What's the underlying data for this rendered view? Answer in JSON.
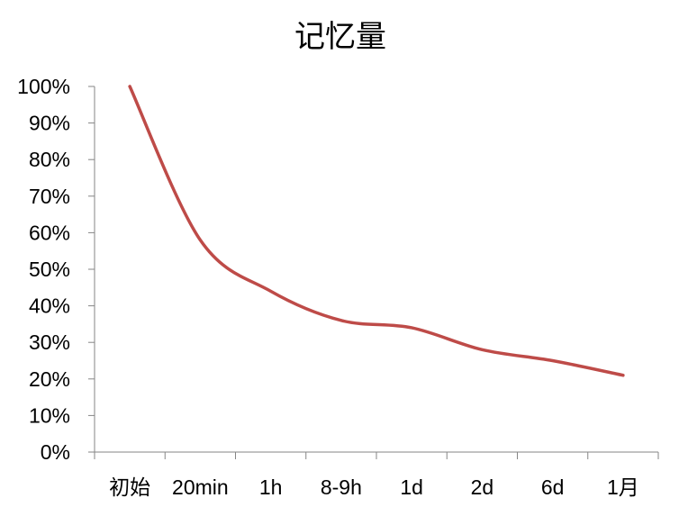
{
  "chart_data": {
    "type": "line",
    "title": "记忆量",
    "xlabel": "",
    "ylabel": "",
    "categories": [
      "初始",
      "20min",
      "1h",
      "8-9h",
      "1d",
      "2d",
      "6d",
      "1月"
    ],
    "series": [
      {
        "values": [
          100,
          58,
          44,
          36,
          34,
          28,
          25,
          21
        ]
      }
    ],
    "ylim": [
      0,
      100
    ],
    "yticks": [
      "0%",
      "10%",
      "20%",
      "30%",
      "40%",
      "50%",
      "60%",
      "70%",
      "80%",
      "90%",
      "100%"
    ],
    "grid": false,
    "legend": "none",
    "line_color": "#BE4B48"
  }
}
